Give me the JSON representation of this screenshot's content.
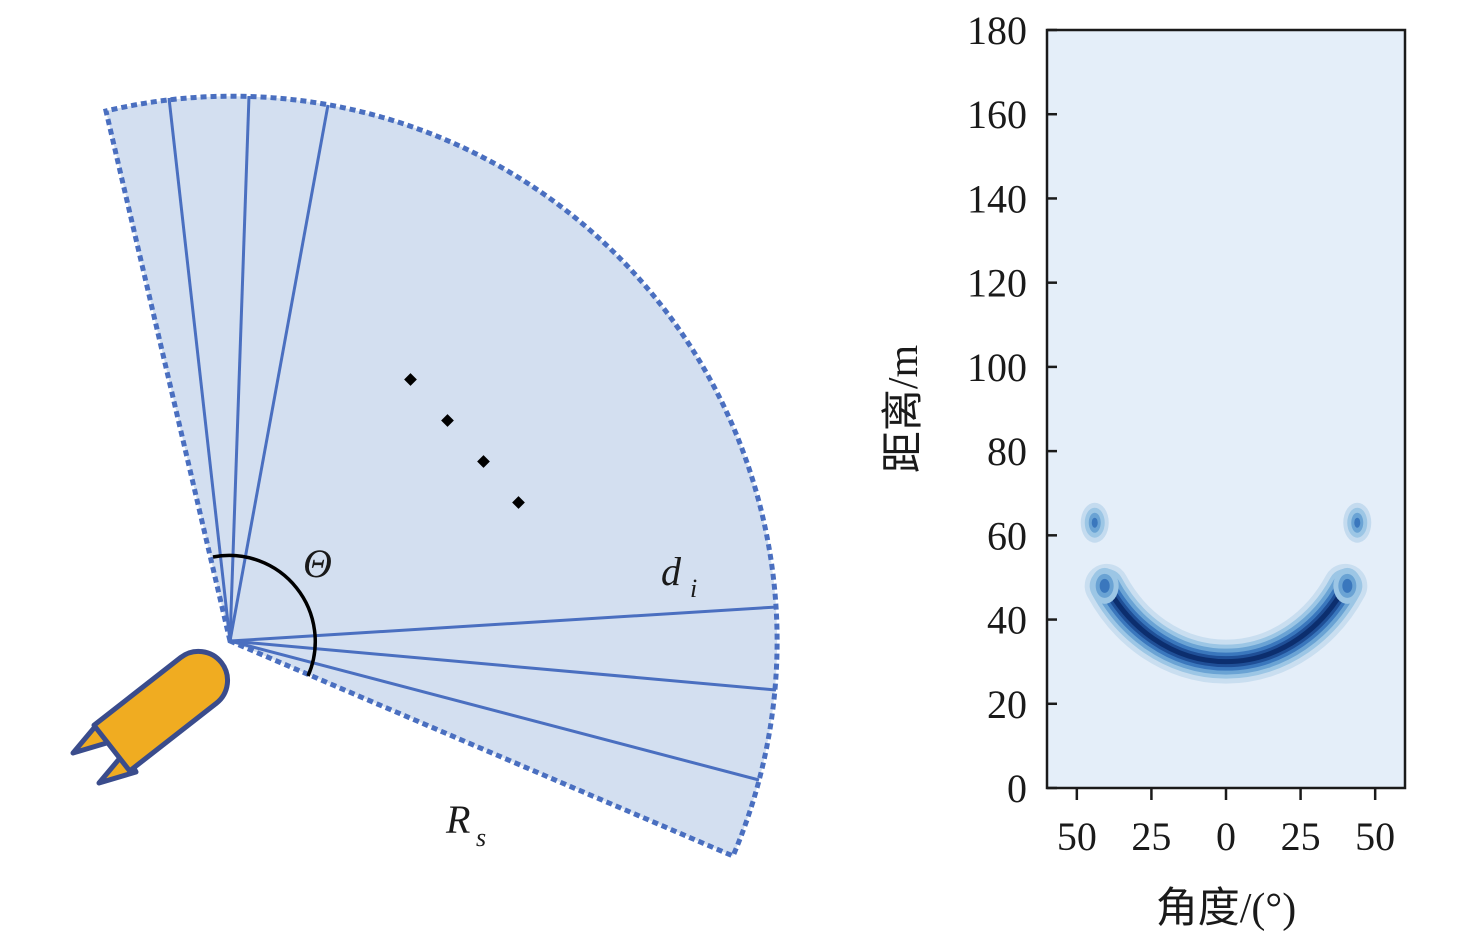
{
  "diagram": {
    "labels": {
      "theta": "Θ",
      "d": "d",
      "d_sub": "i",
      "r": "R",
      "r_sub": "s"
    },
    "colors": {
      "sector_fill": "#d3dff0",
      "sector_line": "#4a6fc0",
      "sector_edge": "#4a6fc0",
      "vehicle_body": "#f0ac21",
      "vehicle_outline": "#3a4c8c",
      "arc": "#000000",
      "dots": "#000000"
    },
    "icons": [
      "vehicle-icon"
    ]
  },
  "chart_data": {
    "type": "heatmap",
    "xlabel": "角度/(°)",
    "ylabel": "距离/m",
    "xticks": [
      "50",
      "25",
      "0",
      "25",
      "50"
    ],
    "yticks": [
      "0",
      "20",
      "40",
      "60",
      "80",
      "100",
      "120",
      "140",
      "160",
      "180"
    ],
    "ylim": [
      0,
      180
    ],
    "xlim": [
      -60,
      60
    ],
    "grid": false,
    "colors": {
      "background": "#e4eef9",
      "levels": [
        "#c4dbef",
        "#9cc6e5",
        "#6aa3d4",
        "#3a77bd",
        "#1f4f97",
        "#0c2e6e"
      ]
    },
    "features": [
      {
        "name": "arc",
        "center_deg": 0,
        "bottom_m": 30,
        "end_angle_deg": 40,
        "end_m": 48
      },
      {
        "name": "left-blob",
        "angle_deg": -44,
        "m": 63
      },
      {
        "name": "right-blob",
        "angle_deg": 44,
        "m": 63
      }
    ]
  }
}
